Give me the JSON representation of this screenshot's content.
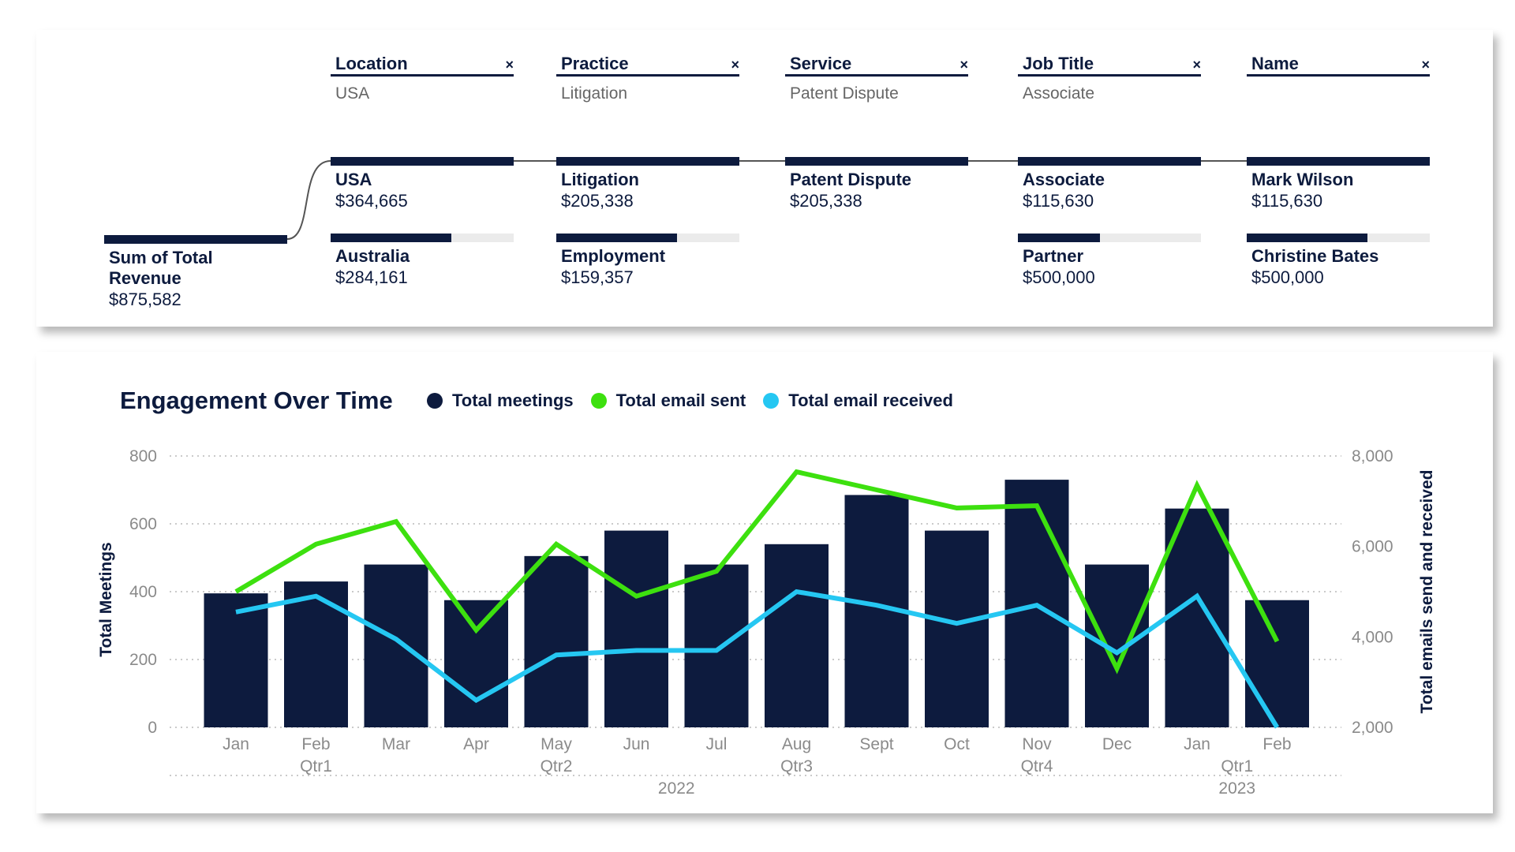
{
  "filters": [
    {
      "label": "Location",
      "value": "USA"
    },
    {
      "label": "Practice",
      "value": "Litigation"
    },
    {
      "label": "Service",
      "value": "Patent Dispute"
    },
    {
      "label": "Job Title",
      "value": "Associate"
    },
    {
      "label": "Name",
      "value": ""
    }
  ],
  "close_glyph": "×",
  "root": {
    "label": "Sum of Total Revenue",
    "value": "$875,582",
    "fill": 1.0
  },
  "columns": [
    [
      {
        "label": "USA",
        "value": "$364,665",
        "fill": 1.0,
        "selected": true
      },
      {
        "label": "Australia",
        "value": "$284,161",
        "fill": 0.66
      }
    ],
    [
      {
        "label": "Litigation",
        "value": "$205,338",
        "fill": 1.0,
        "selected": true
      },
      {
        "label": "Employment",
        "value": "$159,357",
        "fill": 0.66
      }
    ],
    [
      {
        "label": "Patent Dispute",
        "value": "$205,338",
        "fill": 1.0,
        "selected": true
      }
    ],
    [
      {
        "label": "Associate",
        "value": "$115,630",
        "fill": 1.0,
        "selected": true
      },
      {
        "label": "Partner",
        "value": "$500,000",
        "fill": 0.45
      }
    ],
    [
      {
        "label": "Mark Wilson",
        "value": "$115,630",
        "fill": 1.0,
        "selected": true
      },
      {
        "label": "Christine Bates",
        "value": "$500,000",
        "fill": 0.66
      }
    ]
  ],
  "colors": {
    "navy": "#0d1b3e",
    "green": "#3de00f",
    "cyan": "#25c7f2",
    "axis_text": "#8a8a8a",
    "grid": "#b8b8b8"
  },
  "chart_data": {
    "type": "bar+line",
    "title": "Engagement Over Time",
    "categories": [
      "Jan",
      "Feb",
      "Mar",
      "Apr",
      "May",
      "Jun",
      "Jul",
      "Aug",
      "Sept",
      "Oct",
      "Nov",
      "Dec",
      "Jan",
      "Feb"
    ],
    "quarters": [
      {
        "label": "Qtr1",
        "at": 1
      },
      {
        "label": "Qtr2",
        "at": 4
      },
      {
        "label": "Qtr3",
        "at": 7
      },
      {
        "label": "Qtr4",
        "at": 10
      },
      {
        "label": "Qtr1",
        "at": 12.5
      }
    ],
    "years": [
      {
        "label": "2022",
        "at": 5.5
      },
      {
        "label": "2023",
        "at": 12.5
      }
    ],
    "ylabel_left": "Total Meetings",
    "ylabel_right": "Total emails send and received",
    "ylim_left": [
      0,
      800
    ],
    "yticks_left": [
      0,
      200,
      400,
      600,
      800
    ],
    "ylim_right": [
      2000,
      8000
    ],
    "yticks_right": [
      2000,
      4000,
      6000,
      8000
    ],
    "ytick_labels_left": [
      "0",
      "200",
      "400",
      "600",
      "800"
    ],
    "ytick_labels_right": [
      "2,000",
      "4,000",
      "6,000",
      "8,000"
    ],
    "grid": true,
    "legend_position": "top",
    "series": [
      {
        "name": "Total meetings",
        "kind": "bar",
        "axis": "left",
        "color": "#0d1b3e",
        "values": [
          395,
          430,
          480,
          375,
          505,
          580,
          480,
          540,
          685,
          580,
          730,
          480,
          645,
          375
        ]
      },
      {
        "name": "Total email sent",
        "kind": "line",
        "axis": "right",
        "color": "#3de00f",
        "values": [
          5000,
          6050,
          6550,
          4150,
          6050,
          4900,
          5450,
          7650,
          7250,
          6850,
          6900,
          3300,
          7350,
          3900
        ]
      },
      {
        "name": "Total email received",
        "kind": "line",
        "axis": "right",
        "color": "#25c7f2",
        "values": [
          4550,
          4900,
          3950,
          2600,
          3600,
          3700,
          3700,
          5000,
          4700,
          4300,
          4700,
          3650,
          4900,
          2000
        ]
      }
    ]
  }
}
